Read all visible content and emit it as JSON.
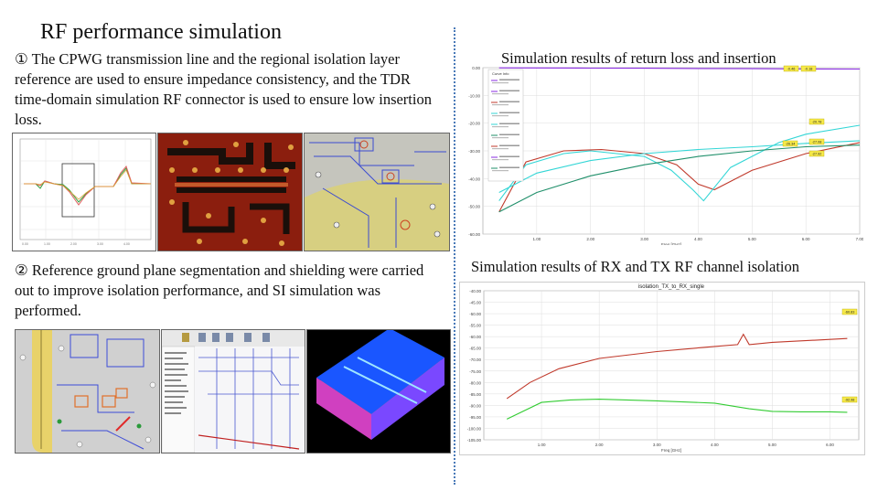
{
  "slide": {
    "title": "RF performance simulation",
    "para1": "① The CPWG transmission line and the regional isolation layer reference are used to ensure impedance consistency, and the TDR time-domain simulation RF connector is used to ensure low insertion loss.",
    "para2": "② Reference ground plane segmentation and shielding were carried out to improve isolation performance, and SI simulation was performed.",
    "chart1_title": "Simulation results of return loss and insertion",
    "chart2_title": "Simulation results of RX and TX RF channel isolation"
  },
  "colors": {
    "accent_divider": "#4a7ab8",
    "series_red": "#c0392b",
    "series_green": "#33cc33",
    "series_cyan": "#33d6d6",
    "series_teal": "#1f8f6a",
    "series_purple": "#8a2be2",
    "marker_yellow": "#f7ea4a"
  },
  "chart_data": [
    {
      "type": "line",
      "title": "",
      "xlabel": "Freq [GHz]",
      "ylabel": "",
      "xlim": [
        0,
        7
      ],
      "ylim": [
        -60,
        0
      ],
      "xticks": [
        "1.00",
        "2.00",
        "3.00",
        "4.00",
        "5.00",
        "6.00",
        "7.00"
      ],
      "yticks": [
        "0.00",
        "-10.00",
        "-20.00",
        "-30.00",
        "-40.00",
        "-50.00",
        "-60.00"
      ],
      "legend_title": "Curve Info",
      "legend_position": "top-left",
      "marker_labels": [
        "-0.46",
        "-0.18",
        "-20.78",
        "-26.34",
        "-27.08",
        "-27.92"
      ],
      "series": [
        {
          "color": "#8a2be2",
          "x": [
            0.3,
            1,
            2,
            3,
            4,
            5,
            6,
            7
          ],
          "y": [
            -0.05,
            -0.1,
            -0.15,
            -0.2,
            -0.3,
            -0.35,
            -0.46,
            -0.5
          ]
        },
        {
          "color": "#c0392b",
          "x": [
            0.3,
            0.8,
            1.5,
            2.2,
            3,
            3.6,
            4.0,
            4.3,
            5,
            6,
            7
          ],
          "y": [
            -52,
            -34,
            -30,
            -29.5,
            -31,
            -35,
            -42,
            -44,
            -37,
            -31,
            -27
          ]
        },
        {
          "color": "#33d6d6",
          "x": [
            0.3,
            0.8,
            1.5,
            2,
            3,
            3.5,
            3.9,
            4.1,
            4.6,
            5.5,
            6,
            7
          ],
          "y": [
            -48,
            -35,
            -31,
            -30,
            -32,
            -37,
            -44,
            -48,
            -36,
            -27,
            -24,
            -20.78
          ]
        },
        {
          "color": "#33d6d6",
          "x": [
            0.3,
            1,
            2,
            3,
            4,
            5,
            6,
            7
          ],
          "y": [
            -45,
            -38,
            -33.5,
            -31,
            -29.5,
            -28.5,
            -27.3,
            -26.34
          ]
        },
        {
          "color": "#1f8f6a",
          "x": [
            0.3,
            1,
            2,
            3,
            4,
            5,
            6,
            7
          ],
          "y": [
            -52,
            -45,
            -39,
            -35,
            -32,
            -30,
            -28.5,
            -27.92
          ]
        }
      ]
    },
    {
      "type": "line",
      "title": "isolation_TX_to_RX_single",
      "xlabel": "Freq [GHz]",
      "ylabel": "",
      "xlim": [
        0,
        6.5
      ],
      "ylim": [
        -105,
        -40
      ],
      "xticks": [
        "1.00",
        "2.00",
        "3.00",
        "4.00",
        "5.00",
        "6.00"
      ],
      "yticks": [
        "-40.00",
        "-45.00",
        "-50.00",
        "-55.00",
        "-60.00",
        "-65.00",
        "-70.00",
        "-75.00",
        "-80.00",
        "-85.00",
        "-90.00",
        "-95.00",
        "-100.00",
        "-105.00"
      ],
      "marker_labels": [
        "-60.83",
        "-92.98"
      ],
      "series": [
        {
          "color": "#c0392b",
          "x": [
            0.4,
            0.8,
            1.3,
            2,
            3,
            4,
            4.4,
            4.5,
            4.6,
            5,
            6,
            6.3
          ],
          "y": [
            -87,
            -80,
            -74,
            -69.5,
            -66.5,
            -64.3,
            -63.5,
            -59,
            -63.5,
            -62.5,
            -61.2,
            -60.83
          ]
        },
        {
          "color": "#33cc33",
          "x": [
            0.4,
            1,
            1.5,
            2,
            3,
            4,
            4.6,
            5,
            5.5,
            6,
            6.3
          ],
          "y": [
            -96,
            -88.7,
            -87.6,
            -87.3,
            -88,
            -89,
            -91.5,
            -92.6,
            -92.8,
            -92.8,
            -92.98
          ]
        }
      ]
    }
  ]
}
